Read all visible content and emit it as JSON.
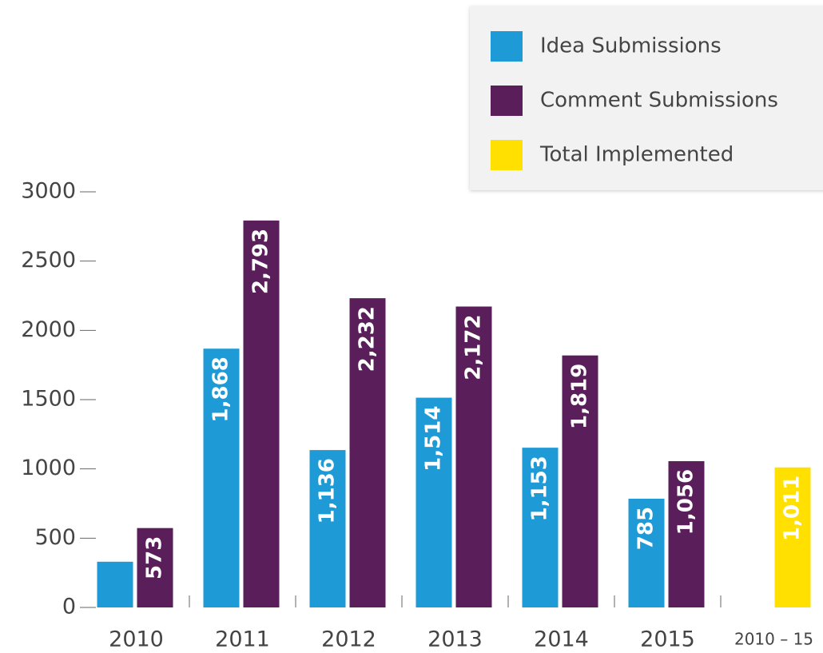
{
  "chart_data": {
    "type": "bar",
    "categories": [
      "2010",
      "2011",
      "2012",
      "2013",
      "2014",
      "2015",
      "2010 – 15"
    ],
    "series": [
      {
        "name": "Idea Submissions",
        "color": "#1e9ad6",
        "values": [
          330,
          1868,
          1136,
          1514,
          1153,
          785,
          null
        ],
        "value_labels": [
          null,
          "1,868",
          "1,136",
          "1,514",
          "1,153",
          "785",
          null
        ]
      },
      {
        "name": "Comment Submissions",
        "color": "#5a1f5a",
        "values": [
          573,
          2793,
          2232,
          2172,
          1819,
          1056,
          null
        ],
        "value_labels": [
          "573",
          "2,793",
          "2,232",
          "2,172",
          "1,819",
          "1,056",
          null
        ]
      },
      {
        "name": "Total Implemented",
        "color": "#ffe000",
        "values": [
          null,
          null,
          null,
          null,
          null,
          null,
          1011
        ],
        "value_labels": [
          null,
          null,
          null,
          null,
          null,
          null,
          "1,011"
        ]
      }
    ],
    "ylim": [
      0,
      3000
    ],
    "yticks": [
      0,
      500,
      1000,
      1500,
      2000,
      2500,
      3000
    ],
    "legend": "top-right"
  }
}
